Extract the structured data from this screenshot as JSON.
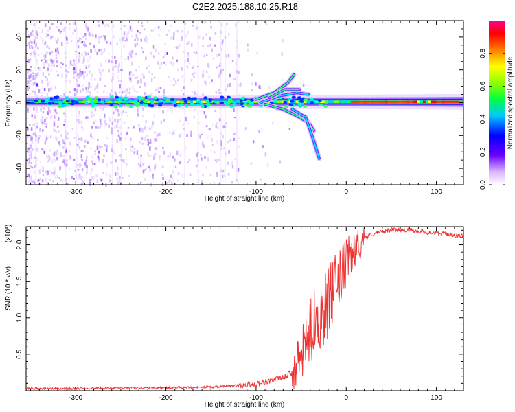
{
  "title": "C2E2.2025.188.10.25.R18",
  "chart_data": [
    {
      "type": "heatmap",
      "xlabel": "Height of straight line (km)",
      "ylabel": "Frequency (Hz)",
      "xlim": [
        -355,
        130
      ],
      "ylim": [
        -50,
        50
      ],
      "xticks": [
        -300,
        -200,
        -100,
        0,
        100
      ],
      "yticks": [
        -40,
        -20,
        0,
        20,
        40
      ],
      "colorbar": {
        "label": "Normalized spectral amplitude",
        "range": [
          0.0,
          1.0
        ],
        "ticks": [
          "0.0",
          "0.2",
          "0.4",
          "0.6",
          "0.8"
        ],
        "colormap": "rainbow (white-violet-blue-cyan-green-yellow-red-magenta)"
      },
      "features": {
        "main_line_frequency_hz": 0.5,
        "noise_region_km": [
          -355,
          -120
        ],
        "signal_onset_km": -100,
        "strong_signal_from_km": 0
      },
      "grid": false,
      "legend": "none"
    },
    {
      "type": "line",
      "xlabel": "Height of straight line (km)",
      "ylabel": "SNR (10 * v/v)",
      "yscale_label": "(x10",
      "yscale_exp": "4",
      "yscale_close": ")",
      "xlim": [
        -355,
        130
      ],
      "ylim": [
        0,
        2.25
      ],
      "xticks": [
        -300,
        -200,
        -100,
        0,
        100
      ],
      "yticks": [
        "0.5",
        "1.0",
        "1.5",
        "2.0"
      ],
      "color": "#ee3333",
      "x": [
        -355,
        -300,
        -250,
        -200,
        -150,
        -120,
        -100,
        -90,
        -80,
        -70,
        -60,
        -50,
        -45,
        -40,
        -35,
        -30,
        -25,
        -20,
        -15,
        -10,
        -5,
        0,
        5,
        10,
        15,
        20,
        30,
        40,
        50,
        60,
        70,
        80,
        90,
        100,
        110,
        120,
        130
      ],
      "y": [
        0.03,
        0.03,
        0.04,
        0.04,
        0.05,
        0.07,
        0.09,
        0.12,
        0.15,
        0.18,
        0.25,
        0.45,
        0.65,
        0.8,
        0.95,
        1.05,
        1.1,
        1.2,
        1.35,
        1.45,
        1.6,
        1.75,
        1.85,
        1.95,
        2.02,
        2.1,
        2.15,
        2.18,
        2.2,
        2.21,
        2.2,
        2.19,
        2.17,
        2.16,
        2.15,
        2.13,
        2.12
      ],
      "grid": false,
      "legend": "none"
    }
  ]
}
